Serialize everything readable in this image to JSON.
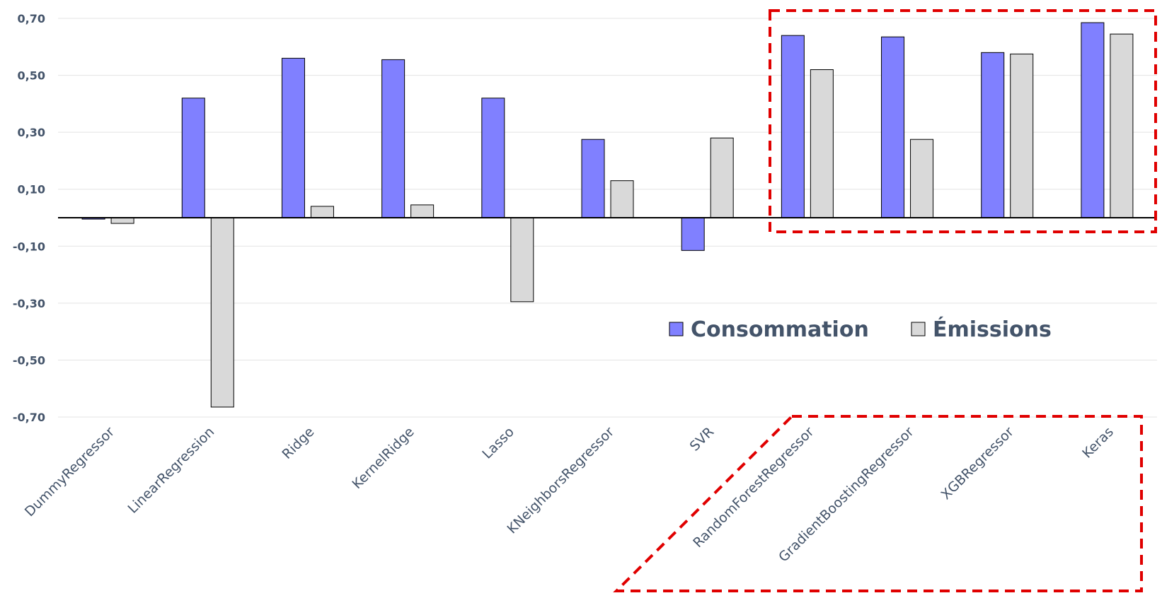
{
  "chart_data": {
    "type": "bar",
    "categories": [
      "DummyRegressor",
      "LinearRegression",
      "Ridge",
      "KernelRidge",
      "Lasso",
      "KNeighborsRegressor",
      "SVR",
      "RandomForestRegressor",
      "GradientBoostingRegressor",
      "XGBRegressor",
      "Keras"
    ],
    "series": [
      {
        "name": "Consommation",
        "color": "#8080ff",
        "values": [
          -0.005,
          0.42,
          0.56,
          0.555,
          0.42,
          0.275,
          -0.115,
          0.64,
          0.635,
          0.58,
          0.685
        ]
      },
      {
        "name": "Émissions",
        "color": "#d9d9d9",
        "values": [
          -0.02,
          -0.665,
          0.04,
          0.045,
          -0.295,
          0.13,
          0.28,
          0.52,
          0.275,
          0.575,
          0.645
        ]
      }
    ],
    "y_ticks": [
      "0,70",
      "0,50",
      "0,30",
      "0,10",
      "-0,10",
      "-0,30",
      "-0,50",
      "-0,70"
    ],
    "ylim": [
      -0.7,
      0.7
    ],
    "grid": true,
    "legend_position": "right-middle",
    "highlighted_categories": [
      "RandomForestRegressor",
      "GradientBoostingRegressor",
      "XGBRegressor",
      "Keras"
    ],
    "highlight_color": "#e00000",
    "title": "",
    "xlabel": "",
    "ylabel": ""
  }
}
